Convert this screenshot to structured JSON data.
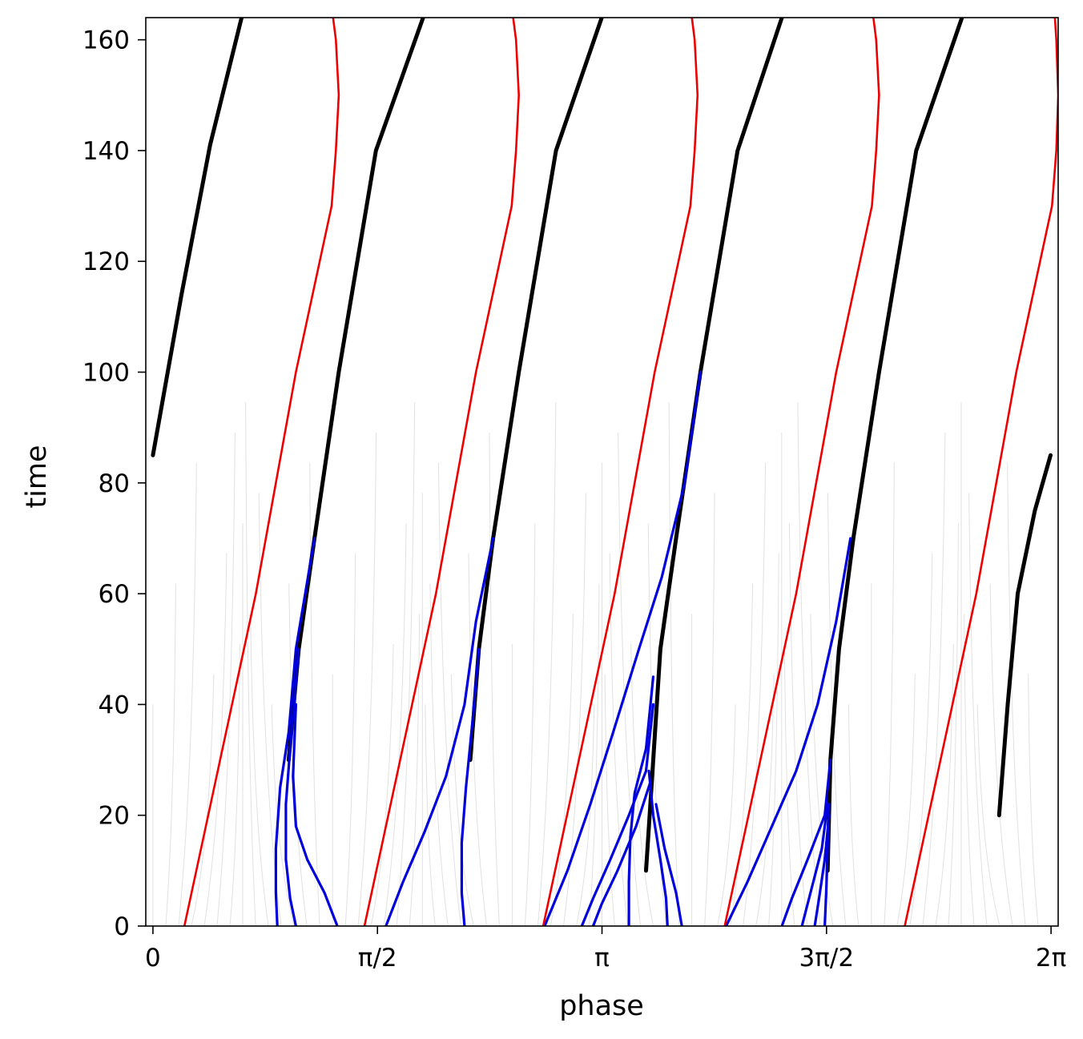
{
  "chart_data": {
    "type": "line",
    "title": "",
    "xlabel": "phase",
    "ylabel": "time",
    "xlim": [
      -0.05,
      6.333
    ],
    "ylim": [
      0,
      164
    ],
    "x_ticks": [
      {
        "value": 0,
        "label": "0"
      },
      {
        "value": 1.5708,
        "label": "π/2"
      },
      {
        "value": 3.1416,
        "label": "π"
      },
      {
        "value": 4.7124,
        "label": "3π/2"
      },
      {
        "value": 6.2832,
        "label": "2π"
      }
    ],
    "y_ticks": [
      0,
      20,
      40,
      60,
      80,
      100,
      120,
      140,
      160
    ],
    "grid": false,
    "legend": "none",
    "colors": {
      "red": "#ee0000",
      "blue": "#0000dd",
      "black": "#000000",
      "gray": "#c8c8c8"
    },
    "series": [
      {
        "color": "red",
        "points": [
          [
            0.22,
            0
          ],
          [
            0.72,
            60
          ],
          [
            1.0,
            100
          ],
          [
            1.25,
            130
          ],
          [
            1.28,
            140
          ],
          [
            1.3,
            150
          ],
          [
            1.28,
            160
          ],
          [
            1.26,
            164
          ]
        ]
      },
      {
        "color": "red",
        "points": [
          [
            1.48,
            0
          ],
          [
            1.98,
            60
          ],
          [
            2.26,
            100
          ],
          [
            2.51,
            130
          ],
          [
            2.54,
            140
          ],
          [
            2.56,
            150
          ],
          [
            2.54,
            160
          ],
          [
            2.52,
            164
          ]
        ]
      },
      {
        "color": "red",
        "points": [
          [
            2.73,
            0
          ],
          [
            3.23,
            60
          ],
          [
            3.51,
            100
          ],
          [
            3.76,
            130
          ],
          [
            3.79,
            140
          ],
          [
            3.81,
            150
          ],
          [
            3.79,
            160
          ],
          [
            3.77,
            164
          ]
        ]
      },
      {
        "color": "red",
        "points": [
          [
            4.0,
            0
          ],
          [
            4.5,
            60
          ],
          [
            4.78,
            100
          ],
          [
            5.03,
            130
          ],
          [
            5.06,
            140
          ],
          [
            5.08,
            150
          ],
          [
            5.06,
            160
          ],
          [
            5.04,
            164
          ]
        ]
      },
      {
        "color": "red",
        "points": [
          [
            5.26,
            0
          ],
          [
            5.76,
            60
          ],
          [
            6.04,
            100
          ],
          [
            6.29,
            130
          ],
          [
            6.32,
            140
          ],
          [
            6.333,
            150
          ],
          [
            6.32,
            160
          ],
          [
            6.31,
            164
          ]
        ]
      },
      {
        "color": "black",
        "points": [
          [
            0,
            85
          ],
          [
            0.2,
            114
          ],
          [
            0.4,
            141
          ],
          [
            0.62,
            164
          ]
        ]
      },
      {
        "color": "black",
        "points": [
          [
            0.95,
            30
          ],
          [
            1.02,
            50
          ],
          [
            1.13,
            70
          ],
          [
            1.3,
            100
          ],
          [
            1.56,
            140
          ],
          [
            1.89,
            164
          ]
        ]
      },
      {
        "color": "black",
        "points": [
          [
            2.22,
            30
          ],
          [
            2.28,
            50
          ],
          [
            2.38,
            70
          ],
          [
            2.56,
            100
          ],
          [
            2.82,
            140
          ],
          [
            3.14,
            164
          ]
        ]
      },
      {
        "color": "black",
        "points": [
          [
            3.45,
            10
          ],
          [
            3.5,
            30
          ],
          [
            3.55,
            50
          ],
          [
            3.66,
            70
          ],
          [
            3.83,
            100
          ],
          [
            4.09,
            140
          ],
          [
            4.4,
            164
          ]
        ]
      },
      {
        "color": "black",
        "points": [
          [
            4.72,
            10
          ],
          [
            4.74,
            30
          ],
          [
            4.8,
            50
          ],
          [
            4.9,
            70
          ],
          [
            5.08,
            100
          ],
          [
            5.34,
            140
          ],
          [
            5.66,
            164
          ]
        ]
      },
      {
        "color": "black",
        "points": [
          [
            5.92,
            20
          ],
          [
            5.98,
            40
          ],
          [
            6.05,
            60
          ],
          [
            6.17,
            75
          ],
          [
            6.28,
            85
          ]
        ]
      },
      {
        "color": "blue",
        "points": [
          [
            0.87,
            0
          ],
          [
            0.86,
            6
          ],
          [
            0.86,
            14
          ],
          [
            0.89,
            25
          ],
          [
            0.95,
            35
          ],
          [
            1.0,
            50
          ],
          [
            1.13,
            70
          ]
        ]
      },
      {
        "color": "blue",
        "points": [
          [
            1.0,
            0
          ],
          [
            0.96,
            5
          ],
          [
            0.93,
            12
          ],
          [
            0.93,
            22
          ],
          [
            0.96,
            32
          ],
          [
            1.02,
            50
          ]
        ]
      },
      {
        "color": "blue",
        "points": [
          [
            1.29,
            0
          ],
          [
            1.2,
            6
          ],
          [
            1.08,
            12
          ],
          [
            1.0,
            18
          ],
          [
            0.98,
            27
          ],
          [
            1.0,
            40
          ]
        ]
      },
      {
        "color": "blue",
        "points": [
          [
            1.63,
            0
          ],
          [
            1.75,
            8
          ],
          [
            1.9,
            17
          ],
          [
            2.05,
            27
          ],
          [
            2.18,
            40
          ],
          [
            2.26,
            55
          ],
          [
            2.38,
            70
          ]
        ]
      },
      {
        "color": "blue",
        "points": [
          [
            2.18,
            0
          ],
          [
            2.16,
            6
          ],
          [
            2.16,
            15
          ],
          [
            2.19,
            25
          ],
          [
            2.24,
            38
          ],
          [
            2.28,
            50
          ]
        ]
      },
      {
        "color": "blue",
        "points": [
          [
            2.74,
            0
          ],
          [
            2.9,
            10
          ],
          [
            3.06,
            22
          ],
          [
            3.22,
            35
          ],
          [
            3.4,
            50
          ],
          [
            3.56,
            63
          ],
          [
            3.72,
            80
          ],
          [
            3.83,
            100
          ]
        ]
      },
      {
        "color": "blue",
        "points": [
          [
            3.0,
            0
          ],
          [
            3.08,
            5
          ],
          [
            3.2,
            12
          ],
          [
            3.33,
            20
          ],
          [
            3.45,
            28
          ],
          [
            3.5,
            40
          ]
        ]
      },
      {
        "color": "blue",
        "points": [
          [
            3.08,
            0
          ],
          [
            3.14,
            4
          ],
          [
            3.25,
            10
          ],
          [
            3.38,
            18
          ],
          [
            3.48,
            26
          ]
        ]
      },
      {
        "color": "blue",
        "points": [
          [
            3.33,
            0
          ],
          [
            3.33,
            8
          ],
          [
            3.34,
            16
          ],
          [
            3.37,
            24
          ],
          [
            3.45,
            32
          ],
          [
            3.5,
            45
          ]
        ]
      },
      {
        "color": "blue",
        "points": [
          [
            3.6,
            0
          ],
          [
            3.59,
            5
          ],
          [
            3.55,
            12
          ],
          [
            3.5,
            20
          ],
          [
            3.47,
            28
          ]
        ]
      },
      {
        "color": "blue",
        "points": [
          [
            3.7,
            0
          ],
          [
            3.66,
            6
          ],
          [
            3.58,
            14
          ],
          [
            3.52,
            22
          ]
        ]
      },
      {
        "color": "blue",
        "points": [
          [
            4.01,
            0
          ],
          [
            4.16,
            8
          ],
          [
            4.33,
            18
          ],
          [
            4.5,
            28
          ],
          [
            4.65,
            40
          ],
          [
            4.78,
            55
          ],
          [
            4.88,
            70
          ]
        ]
      },
      {
        "color": "blue",
        "points": [
          [
            4.4,
            0
          ],
          [
            4.47,
            5
          ],
          [
            4.58,
            12
          ],
          [
            4.7,
            20
          ],
          [
            4.74,
            30
          ]
        ]
      },
      {
        "color": "blue",
        "points": [
          [
            4.54,
            0
          ],
          [
            4.6,
            6
          ],
          [
            4.68,
            14
          ],
          [
            4.72,
            22
          ]
        ]
      },
      {
        "color": "blue",
        "points": [
          [
            4.63,
            0
          ],
          [
            4.66,
            5
          ],
          [
            4.7,
            12
          ],
          [
            4.73,
            20
          ]
        ]
      },
      {
        "color": "blue",
        "points": [
          [
            4.7,
            0
          ],
          [
            4.71,
            6
          ],
          [
            4.72,
            14
          ],
          [
            4.73,
            22
          ]
        ]
      }
    ]
  }
}
